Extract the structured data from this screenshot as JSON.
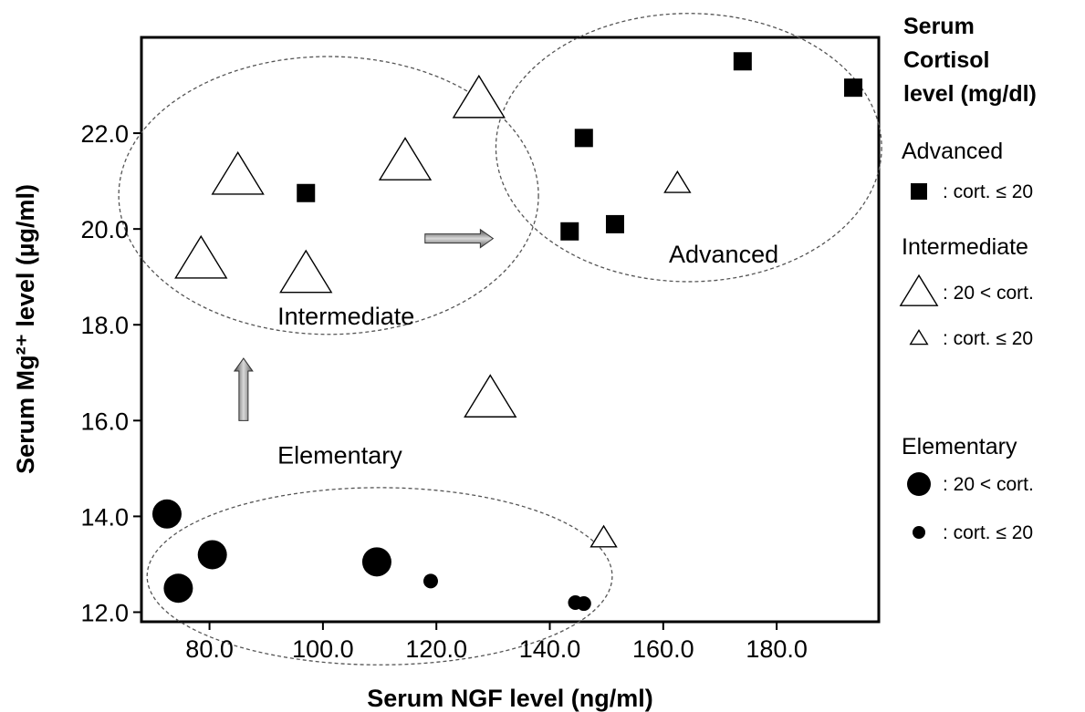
{
  "chart_data": {
    "type": "scatter",
    "xlabel": "Serum NGF level (ng/ml)",
    "ylabel": "Serum Mg²⁺ level (µg/ml)",
    "xlim": [
      68,
      198
    ],
    "ylim": [
      11.8,
      24.0
    ],
    "x_ticks": [
      "80.0",
      "100.0",
      "120.0",
      "140.0",
      "160.0",
      "180.0"
    ],
    "x_tick_values": [
      80,
      100,
      120,
      140,
      160,
      180
    ],
    "y_ticks": [
      "12.0",
      "14.0",
      "16.0",
      "18.0",
      "20.0",
      "22.0"
    ],
    "y_tick_values": [
      12,
      14,
      16,
      18,
      20,
      22
    ],
    "grid": false,
    "legend_position": "right",
    "legend_title": [
      "Serum",
      "Cortisol",
      "level (mg/dl)"
    ],
    "legend": [
      {
        "group": "Advanced",
        "entries": [
          {
            "marker": "square",
            "label": ": cort. ≤ 20"
          }
        ]
      },
      {
        "group": "Intermediate",
        "entries": [
          {
            "marker": "triangle-large",
            "label": ": 20 < cort."
          },
          {
            "marker": "triangle-small",
            "label": ": cort. ≤ 20"
          }
        ]
      },
      {
        "group": "Elementary",
        "entries": [
          {
            "marker": "circle-large",
            "label": ": 20 < cort."
          },
          {
            "marker": "circle-small",
            "label": ": cort. ≤ 20"
          }
        ]
      }
    ],
    "series": [
      {
        "name": "Advanced",
        "marker": "square",
        "points": [
          {
            "x": 97,
            "y": 20.75
          },
          {
            "x": 143.5,
            "y": 19.95
          },
          {
            "x": 146,
            "y": 21.9
          },
          {
            "x": 151.5,
            "y": 20.1
          },
          {
            "x": 174,
            "y": 23.5
          },
          {
            "x": 193.5,
            "y": 22.95
          }
        ]
      },
      {
        "name": "Intermediate",
        "marker": "triangle-large",
        "points": [
          {
            "x": 78.5,
            "y": 19.35
          },
          {
            "x": 85,
            "y": 21.1
          },
          {
            "x": 97,
            "y": 19.05
          },
          {
            "x": 114.5,
            "y": 21.4
          },
          {
            "x": 127.5,
            "y": 22.7
          },
          {
            "x": 129.5,
            "y": 16.45
          }
        ]
      },
      {
        "name": "Intermediate",
        "marker": "triangle-small",
        "points": [
          {
            "x": 149.5,
            "y": 13.55
          },
          {
            "x": 162.5,
            "y": 20.95
          }
        ]
      },
      {
        "name": "Elementary",
        "marker": "circle-large",
        "points": [
          {
            "x": 72.5,
            "y": 14.05
          },
          {
            "x": 74.5,
            "y": 12.5
          },
          {
            "x": 80.5,
            "y": 13.2
          },
          {
            "x": 109.5,
            "y": 13.05
          }
        ]
      },
      {
        "name": "Elementary",
        "marker": "circle-small",
        "points": [
          {
            "x": 119,
            "y": 12.65
          },
          {
            "x": 144.5,
            "y": 12.2
          },
          {
            "x": 146,
            "y": 12.18
          }
        ]
      }
    ],
    "annotations": [
      {
        "text": "Advanced",
        "x": 161,
        "y": 19.3
      },
      {
        "text": "Intermediate",
        "x": 92,
        "y": 18.0
      },
      {
        "text": "Elementary",
        "x": 92,
        "y": 15.1
      }
    ],
    "group_outlines": [
      {
        "name": "Intermediate",
        "cx": 101,
        "cy": 20.7,
        "rx": 37,
        "ry": 2.9
      },
      {
        "name": "Advanced",
        "cx": 164.5,
        "cy": 21.7,
        "rx": 34,
        "ry": 2.8
      },
      {
        "name": "Elementary",
        "cx": 110,
        "cy": 12.75,
        "rx": 41,
        "ry": 1.85
      }
    ],
    "arrows": [
      {
        "direction": "up",
        "x": 86,
        "y_from": 16.0,
        "y_to": 17.3
      },
      {
        "direction": "right",
        "y": 19.8,
        "x_from": 118,
        "x_to": 130
      }
    ]
  }
}
